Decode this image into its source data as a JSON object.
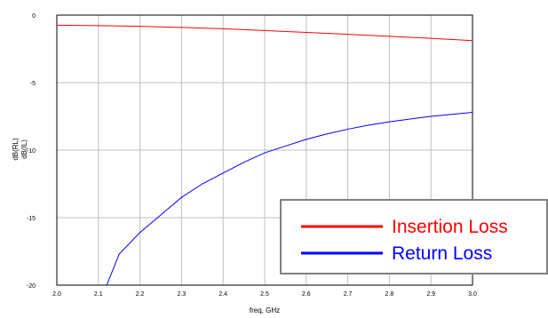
{
  "chart_data": {
    "type": "line",
    "xlabel": "freq, GHz",
    "ylabel_lines": [
      "dB(RL)",
      "dB(IL)"
    ],
    "xlim": [
      2.0,
      3.0
    ],
    "ylim": [
      -20,
      0
    ],
    "x_ticks": [
      "2.0",
      "2.1",
      "2.2",
      "2.3",
      "2.4",
      "2.5",
      "2.6",
      "2.7",
      "2.8",
      "2.9",
      "3.0"
    ],
    "y_ticks": [
      "0",
      "-5",
      "-10",
      "-15",
      "-20"
    ],
    "grid": true,
    "legend_position": "bottom-right",
    "series": [
      {
        "name": "Insertion Loss",
        "color": "#ff0000",
        "x": [
          2.0,
          2.1,
          2.2,
          2.3,
          2.4,
          2.5,
          2.6,
          2.7,
          2.8,
          2.9,
          3.0
        ],
        "y": [
          -0.75,
          -0.78,
          -0.83,
          -0.91,
          -1.01,
          -1.14,
          -1.28,
          -1.42,
          -1.57,
          -1.72,
          -1.89
        ]
      },
      {
        "name": "Return Loss",
        "color": "#0000ff",
        "x": [
          2.12,
          2.15,
          2.2,
          2.25,
          2.3,
          2.35,
          2.4,
          2.45,
          2.5,
          2.55,
          2.6,
          2.65,
          2.7,
          2.75,
          2.8,
          2.85,
          2.9,
          2.95,
          3.0
        ],
        "y": [
          -20.0,
          -17.7,
          -16.1,
          -14.8,
          -13.5,
          -12.5,
          -11.7,
          -10.9,
          -10.2,
          -9.7,
          -9.2,
          -8.8,
          -8.45,
          -8.15,
          -7.9,
          -7.7,
          -7.5,
          -7.35,
          -7.2
        ]
      }
    ]
  }
}
